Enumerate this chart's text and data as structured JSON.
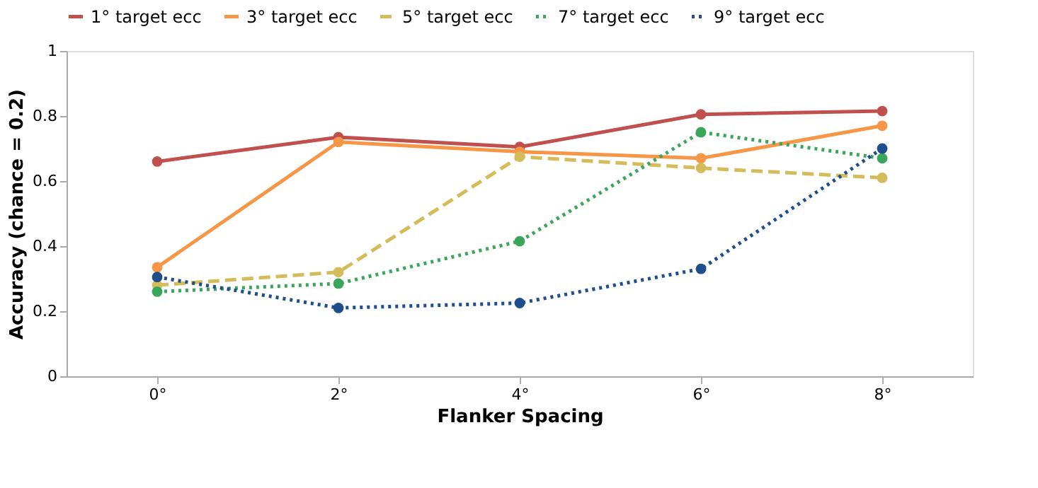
{
  "chart_data": {
    "type": "line",
    "xlabel": "Flanker Spacing",
    "ylabel": "Accuracy (chance = 0.2)",
    "categories": [
      "0°",
      "2°",
      "4°",
      "6°",
      "8°"
    ],
    "ylim": [
      0,
      1
    ],
    "yticks": [
      0,
      0.2,
      0.4,
      0.6,
      0.8,
      1
    ],
    "grid": false,
    "legend": "top",
    "marker": "circle",
    "series": [
      {
        "name": "1° target ecc",
        "color": "#c0504d",
        "line_style": "solid",
        "values": [
          0.66,
          0.735,
          0.705,
          0.805,
          0.815
        ]
      },
      {
        "name": "3° target ecc",
        "color": "#f79646",
        "line_style": "solid",
        "values": [
          0.335,
          0.72,
          0.69,
          0.67,
          0.77
        ]
      },
      {
        "name": "5° target ecc",
        "color": "#d4bc5a",
        "line_style": "dashed",
        "values": [
          0.28,
          0.32,
          0.675,
          0.64,
          0.61
        ]
      },
      {
        "name": "7° target ecc",
        "color": "#3aa65a",
        "line_style": "dotted",
        "values": [
          0.26,
          0.285,
          0.415,
          0.75,
          0.67
        ]
      },
      {
        "name": "9° target ecc",
        "color": "#1f4e8c",
        "line_style": "dotted",
        "values": [
          0.305,
          0.21,
          0.225,
          0.33,
          0.7
        ]
      }
    ]
  }
}
